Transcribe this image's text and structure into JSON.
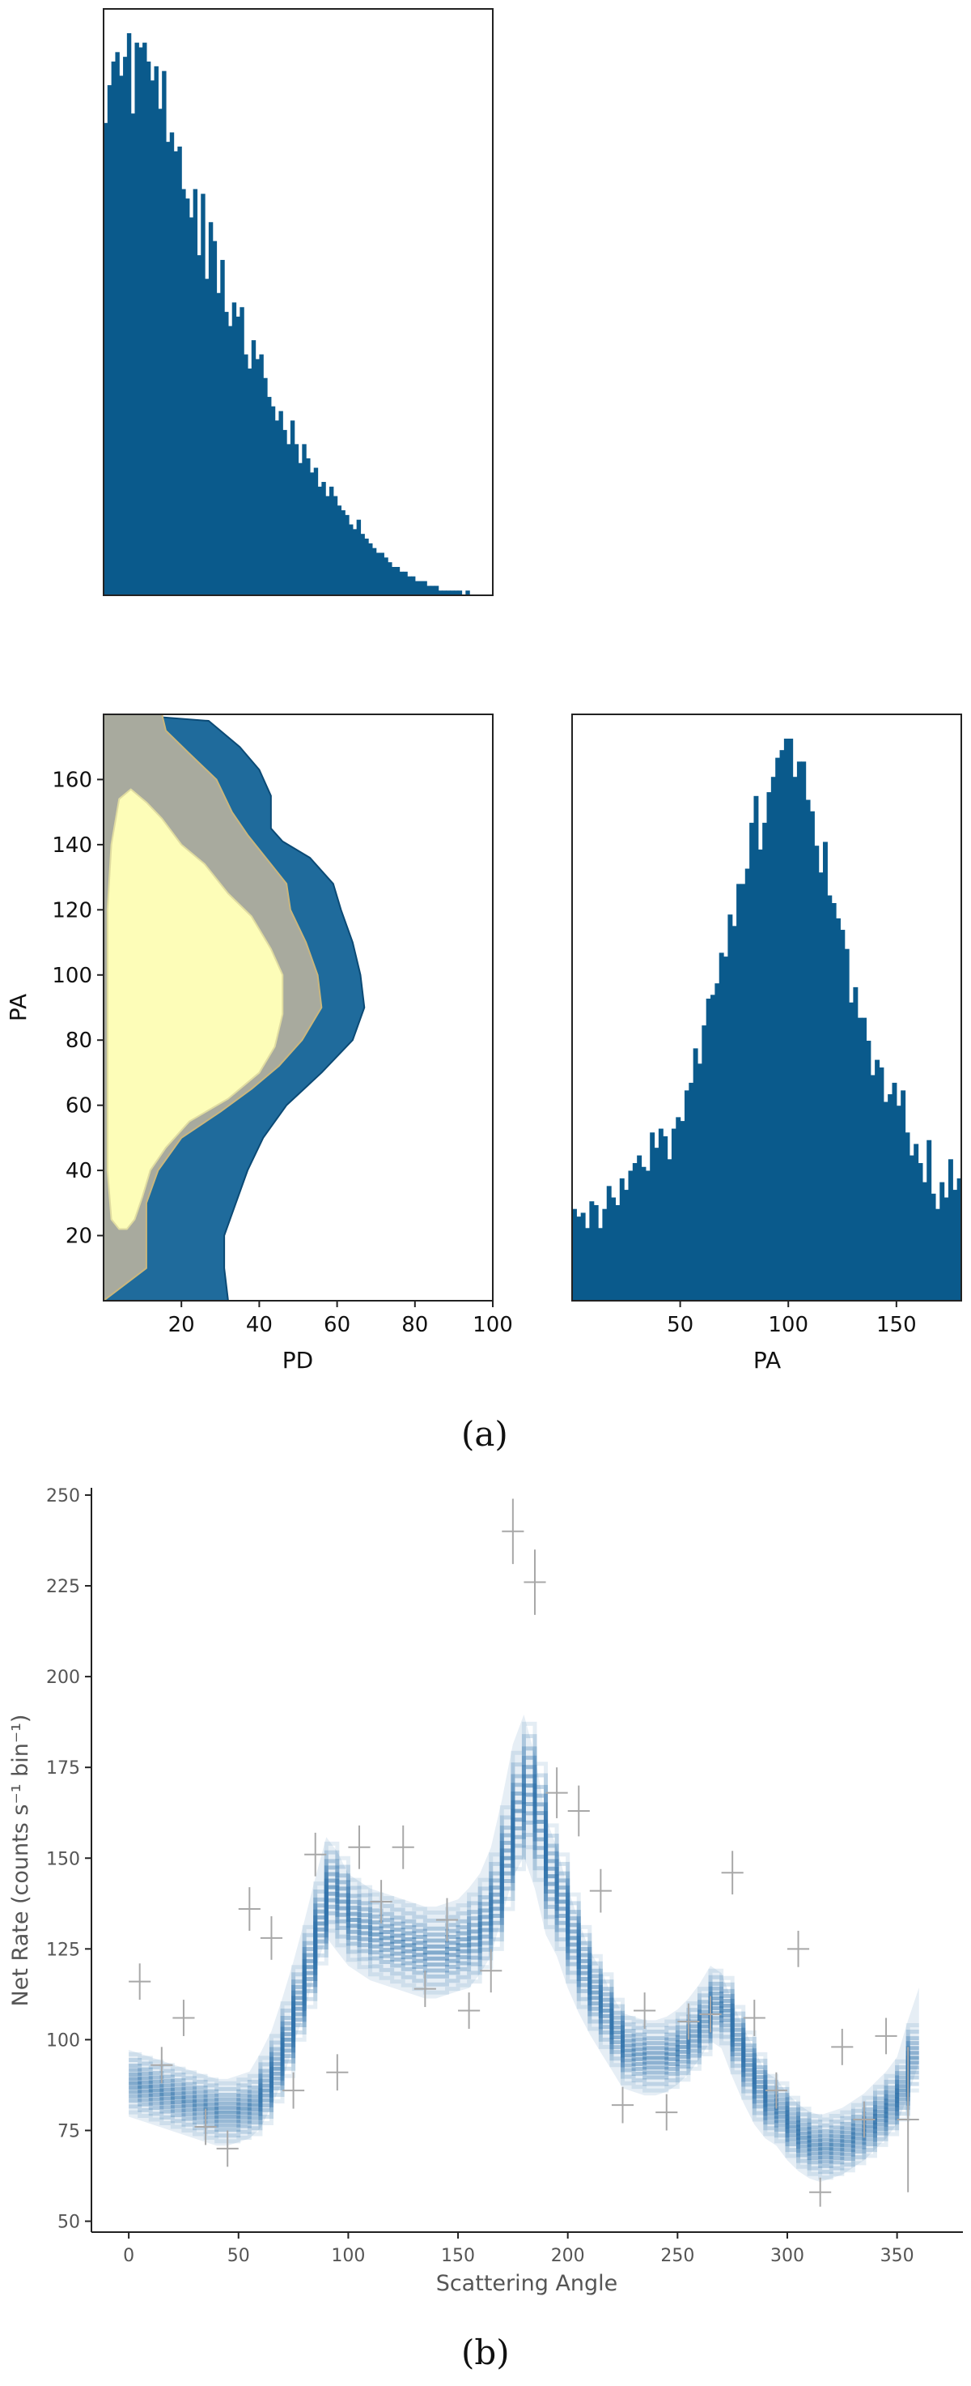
{
  "colors": {
    "hist": "#0a5a8c",
    "contour_outer": "#1f6b9c",
    "contour_mid": "#a8aa9e",
    "contour_inner": "#fdfdb8",
    "model": "#2f72ab",
    "data": "#a8a8a8",
    "axis": "#222222",
    "tick_label_b": "#555555"
  },
  "captions": {
    "a": "(a)",
    "b": "(b)"
  },
  "chart_data": [
    {
      "name": "pd-marginal",
      "type": "histogram",
      "x_range": [
        0,
        100
      ],
      "bin_width": 1,
      "ticks_shown": false,
      "values": [
        100,
        108,
        113,
        115,
        110,
        114,
        119,
        102,
        117,
        116,
        117,
        113,
        109,
        112,
        103,
        111,
        96,
        98,
        94,
        95,
        86,
        84,
        80,
        86,
        72,
        85,
        67,
        79,
        75,
        64,
        71,
        60,
        57,
        62,
        59,
        61,
        51,
        48,
        54,
        50,
        51,
        46,
        42,
        40,
        37,
        39,
        35,
        32,
        37,
        32,
        28,
        32,
        29,
        26,
        27,
        23,
        24,
        21,
        23,
        21,
        19,
        18,
        17,
        15,
        14,
        16,
        13,
        12,
        11,
        10,
        9,
        9,
        8,
        7,
        6,
        6,
        5,
        5,
        4,
        4,
        3,
        3,
        3,
        2,
        2,
        2,
        1,
        1,
        1,
        1,
        1,
        1,
        0,
        1,
        0,
        0,
        0,
        0,
        0,
        0
      ]
    },
    {
      "name": "pd-pa-contour",
      "type": "contour",
      "xlabel": "PD",
      "ylabel": "PA",
      "xlim": [
        0,
        100
      ],
      "ylim": [
        0,
        180
      ],
      "xticks": [
        20,
        40,
        60,
        80,
        100
      ],
      "yticks": [
        20,
        40,
        60,
        80,
        100,
        120,
        140,
        160
      ],
      "levels": [
        {
          "level": "outer",
          "points": [
            [
              32,
              0
            ],
            [
              31,
              10
            ],
            [
              31,
              20
            ],
            [
              34,
              30
            ],
            [
              37,
              40
            ],
            [
              41,
              50
            ],
            [
              47,
              60
            ],
            [
              56,
              70
            ],
            [
              64,
              80
            ],
            [
              67,
              90
            ],
            [
              66,
              100
            ],
            [
              64,
              110
            ],
            [
              61,
              120
            ],
            [
              59,
              128
            ],
            [
              53,
              136
            ],
            [
              46,
              141
            ],
            [
              43,
              145
            ],
            [
              43,
              155
            ],
            [
              40,
              163
            ],
            [
              35,
              170
            ],
            [
              27,
              178
            ]
          ]
        },
        {
          "level": "middle",
          "points": [
            [
              11,
              10
            ],
            [
              11,
              20
            ],
            [
              11,
              30
            ],
            [
              14,
              40
            ],
            [
              20,
              50
            ],
            [
              30,
              58
            ],
            [
              38,
              65
            ],
            [
              45,
              72
            ],
            [
              51,
              80
            ],
            [
              56,
              90
            ],
            [
              55,
              100
            ],
            [
              52,
              110
            ],
            [
              48,
              120
            ],
            [
              47,
              128
            ],
            [
              43,
              134
            ],
            [
              37,
              143
            ],
            [
              33,
              150
            ],
            [
              29,
              160
            ],
            [
              22,
              168
            ],
            [
              16,
              175
            ],
            [
              15,
              180
            ]
          ]
        },
        {
          "level": "inner",
          "points": [
            [
              2,
              25
            ],
            [
              4,
              22
            ],
            [
              6,
              22
            ],
            [
              8,
              25
            ],
            [
              10,
              32
            ],
            [
              12,
              40
            ],
            [
              16,
              47
            ],
            [
              22,
              55
            ],
            [
              32,
              62
            ],
            [
              40,
              70
            ],
            [
              44,
              78
            ],
            [
              46,
              88
            ],
            [
              46,
              100
            ],
            [
              43,
              108
            ],
            [
              38,
              118
            ],
            [
              32,
              125
            ],
            [
              26,
              134
            ],
            [
              20,
              140
            ],
            [
              15,
              148
            ],
            [
              11,
              153
            ],
            [
              7,
              157
            ],
            [
              4,
              154
            ],
            [
              2,
              140
            ],
            [
              1,
              120
            ],
            [
              1,
              100
            ],
            [
              1,
              80
            ],
            [
              1,
              60
            ],
            [
              1,
              40
            ]
          ]
        }
      ]
    },
    {
      "name": "pa-marginal",
      "type": "histogram",
      "xlabel": "PA",
      "x_range": [
        0,
        180
      ],
      "bin_width": 2,
      "xticks": [
        50,
        100,
        150
      ],
      "values": [
        24,
        22,
        23,
        19,
        26,
        25,
        19,
        24,
        30,
        27,
        25,
        32,
        29,
        34,
        36,
        38,
        35,
        34,
        44,
        40,
        45,
        43,
        37,
        45,
        48,
        47,
        55,
        57,
        66,
        62,
        72,
        79,
        80,
        83,
        91,
        90,
        101,
        98,
        109,
        109,
        113,
        125,
        132,
        118,
        125,
        133,
        137,
        142,
        144,
        147,
        147,
        137,
        141,
        141,
        131,
        128,
        119,
        112,
        120,
        106,
        104,
        100,
        97,
        92,
        78,
        82,
        74,
        74,
        68,
        59,
        63,
        61,
        52,
        54,
        57,
        51,
        55,
        44,
        38,
        41,
        36,
        31,
        42,
        28,
        24,
        31,
        27,
        37,
        29,
        32
      ]
    },
    {
      "name": "modulation-curve",
      "type": "line",
      "xlabel": "Scattering Angle",
      "ylabel": "Net Rate (counts s⁻¹ bin⁻¹)",
      "xlim": [
        -17,
        380
      ],
      "ylim": [
        47,
        252
      ],
      "xticks": [
        0,
        50,
        100,
        150,
        200,
        250,
        300,
        350
      ],
      "yticks": [
        50,
        75,
        100,
        125,
        150,
        175,
        200,
        225,
        250
      ],
      "model_band": {
        "x": [
          0,
          5,
          10,
          15,
          20,
          25,
          30,
          35,
          40,
          45,
          50,
          55,
          60,
          65,
          70,
          75,
          80,
          85,
          90,
          95,
          100,
          105,
          110,
          115,
          120,
          125,
          130,
          135,
          140,
          145,
          150,
          155,
          160,
          165,
          170,
          175,
          180,
          185,
          190,
          195,
          200,
          205,
          210,
          215,
          220,
          225,
          230,
          235,
          240,
          245,
          250,
          255,
          260,
          265,
          270,
          275,
          280,
          285,
          290,
          295,
          300,
          305,
          310,
          315,
          320,
          325,
          330,
          335,
          340,
          345,
          350,
          355,
          360
        ],
        "median": [
          88,
          87,
          86,
          85,
          84,
          83,
          82,
          81,
          80,
          80,
          81,
          82,
          86,
          92,
          100,
          110,
          120,
          132,
          142,
          138,
          133,
          131,
          129,
          128,
          127,
          126,
          125,
          124,
          124,
          125,
          126,
          128,
          132,
          138,
          150,
          163,
          170,
          160,
          145,
          138,
          128,
          120,
          113,
          108,
          102,
          97,
          96,
          95,
          95,
          96,
          98,
          101,
          105,
          110,
          108,
          100,
          93,
          87,
          82,
          80,
          76,
          73,
          71,
          70,
          71,
          72,
          74,
          76,
          79,
          82,
          86,
          95,
          104
        ],
        "spread": [
          8,
          8,
          8,
          8,
          8,
          8,
          8,
          8,
          8,
          8,
          8,
          8,
          9,
          9,
          10,
          10,
          11,
          11,
          12,
          12,
          11,
          11,
          11,
          11,
          11,
          11,
          11,
          11,
          11,
          11,
          11,
          12,
          12,
          13,
          14,
          16,
          17,
          16,
          14,
          13,
          12,
          11,
          10,
          10,
          9,
          9,
          9,
          9,
          9,
          9,
          9,
          9,
          9,
          9,
          9,
          9,
          9,
          9,
          8,
          8,
          8,
          8,
          8,
          8,
          8,
          8,
          8,
          8,
          8,
          8,
          8,
          9,
          9
        ]
      },
      "data_points": {
        "x": [
          5,
          15,
          25,
          35,
          45,
          55,
          65,
          75,
          85,
          95,
          105,
          115,
          125,
          135,
          145,
          155,
          165,
          175,
          185,
          195,
          205,
          215,
          225,
          235,
          245,
          255,
          265,
          275,
          285,
          295,
          305,
          315,
          325,
          335,
          345,
          355
        ],
        "y": [
          116,
          93,
          106,
          76,
          70,
          136,
          128,
          86,
          151,
          91,
          153,
          138,
          153,
          114,
          133,
          108,
          119,
          240,
          226,
          168,
          163,
          141,
          82,
          108,
          80,
          105,
          107,
          146,
          106,
          86,
          125,
          58,
          98,
          78,
          101,
          78
        ],
        "err": [
          5,
          5,
          5,
          5,
          5,
          6,
          6,
          5,
          6,
          5,
          6,
          6,
          6,
          5,
          6,
          5,
          6,
          9,
          9,
          7,
          7,
          6,
          5,
          5,
          5,
          5,
          5,
          6,
          5,
          5,
          5,
          4,
          5,
          5,
          5,
          20
        ]
      }
    }
  ]
}
